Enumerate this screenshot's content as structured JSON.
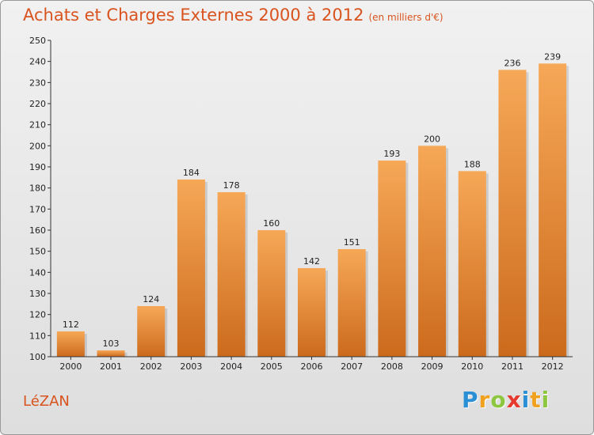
{
  "header": {
    "title": "Achats et Charges Externes 2000 à 2012",
    "subtitle": "(en milliers d'€)"
  },
  "location": "LéZAN",
  "brand": {
    "letters": [
      {
        "ch": "P",
        "color": "#2b8fd6"
      },
      {
        "ch": "r",
        "color": "#f0a21e"
      },
      {
        "ch": "o",
        "color": "#8dc63f"
      },
      {
        "ch": "x",
        "color": "#e63a2e"
      },
      {
        "ch": "i",
        "color": "#2b8fd6"
      },
      {
        "ch": "t",
        "color": "#f0a21e"
      },
      {
        "ch": "i",
        "color": "#8dc63f"
      }
    ]
  },
  "colors": {
    "bar_top": "#f6a857",
    "bar_bottom": "#cc6a1c",
    "title": "#d9531e"
  },
  "chart_data": {
    "type": "bar",
    "categories": [
      "2000",
      "2001",
      "2002",
      "2003",
      "2004",
      "2005",
      "2006",
      "2007",
      "2008",
      "2009",
      "2010",
      "2011",
      "2012"
    ],
    "values": [
      112,
      103,
      124,
      184,
      178,
      160,
      142,
      151,
      193,
      200,
      188,
      236,
      239
    ],
    "ylim": [
      100,
      250
    ],
    "yticks": [
      100,
      110,
      120,
      130,
      140,
      150,
      160,
      170,
      180,
      190,
      200,
      210,
      220,
      230,
      240,
      250
    ],
    "grid": false
  }
}
